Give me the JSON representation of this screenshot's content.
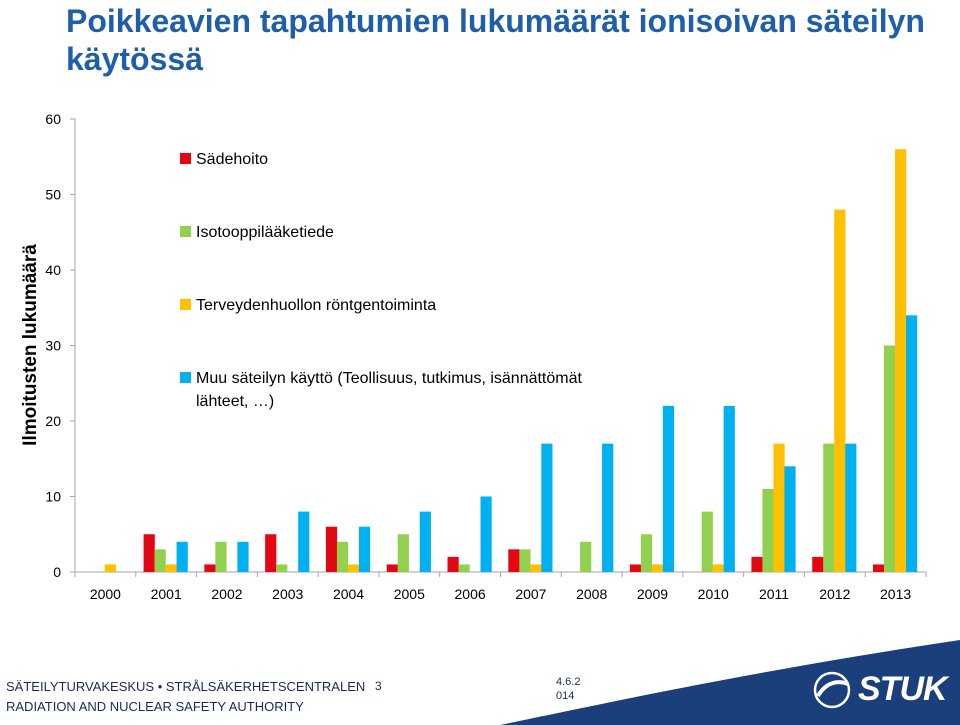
{
  "slide": {
    "title": "Poikkeavien tapahtumien lukumäärät ionisoivan säteilyn käytössä",
    "footer_line1": "SÄTEILYTURVAKESKUS • STRÅLSÄKERHETSCENTRALEN",
    "footer_line2": "RADIATION AND NUCLEAR SAFETY AUTHORITY",
    "page_number": "3",
    "date": "4.6.2014",
    "logo_text": "STUK",
    "logo_icon": "stuk-swoosh-logo-icon"
  },
  "chart_data": {
    "type": "bar",
    "title": "",
    "xlabel": "",
    "ylabel": "Ilmoitusten lukumäärä",
    "ylim": [
      0,
      60
    ],
    "yticks": [
      0,
      10,
      20,
      30,
      40,
      50,
      60
    ],
    "grid": false,
    "legend_position": "top-left",
    "categories": [
      "2000",
      "2001",
      "2002",
      "2003",
      "2004",
      "2005",
      "2006",
      "2007",
      "2008",
      "2009",
      "2010",
      "2011",
      "2012",
      "2013"
    ],
    "series": [
      {
        "name": "Sädehoito",
        "color": "#e30613",
        "values": [
          0,
          5,
          1,
          5,
          6,
          1,
          2,
          3,
          0,
          1,
          0,
          2,
          2,
          1
        ]
      },
      {
        "name": "Isotooppilääketiede",
        "color": "#92d050",
        "values": [
          0,
          3,
          4,
          1,
          4,
          5,
          1,
          3,
          4,
          5,
          8,
          11,
          17,
          30
        ]
      },
      {
        "name": "Terveydenhuollon röntgentoiminta",
        "color": "#ffc000",
        "values": [
          1,
          1,
          0,
          0,
          1,
          0,
          0,
          1,
          0,
          1,
          1,
          17,
          48,
          56
        ]
      },
      {
        "name": "Muu säteilyn käyttö (Teollisuus, tutkimus, isännättömät lähteet, …)",
        "color": "#00b0f0",
        "values": [
          0,
          4,
          4,
          8,
          6,
          8,
          10,
          17,
          17,
          22,
          22,
          14,
          17,
          34
        ]
      }
    ]
  }
}
